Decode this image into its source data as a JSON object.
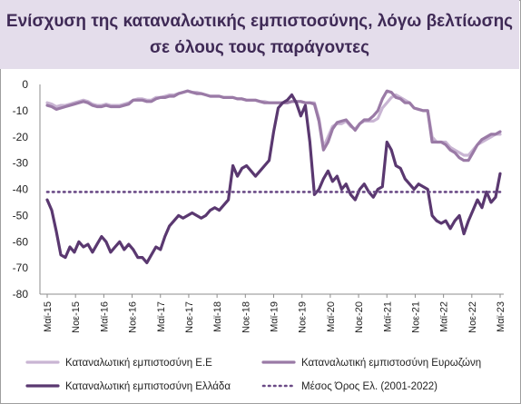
{
  "title_line1": "Ενίσχυση της καταναλωτικής εμπιστοσύνης, λόγω βελτίωσης",
  "title_line2": "σε όλους τους παράγοντες",
  "colors": {
    "eu": "#c9b5d3",
    "eurozone": "#9a7aa6",
    "greece": "#5a3870",
    "mean": "#6a4a86",
    "title_band": "#e4ddeb",
    "title_text": "#3f2a56"
  },
  "chart_data": {
    "type": "line",
    "title": "Ενίσχυση της καταναλωτικής εμπιστοσύνης, λόγω βελτίωσης σε όλους τους παράγοντες",
    "xlabel": "",
    "ylabel": "",
    "ylim": [
      -80,
      0
    ],
    "yticks": [
      0,
      -10,
      -20,
      -30,
      -40,
      -50,
      -60,
      -70,
      -80
    ],
    "x_start": "Μαϊ-15",
    "x_end": "Μαϊ-23",
    "xticks": [
      "Μαϊ-15",
      "Νοε-15",
      "Μαϊ-16",
      "Νοε-16",
      "Μαϊ-17",
      "Νοε-17",
      "Μαϊ-18",
      "Νοε-18",
      "Μαϊ-19",
      "Νοε-19",
      "Μαϊ-20",
      "Νοε-20",
      "Μαϊ-21",
      "Νοε-21",
      "Μαϊ-22",
      "Νοε-22",
      "Μαϊ-23"
    ],
    "grid": false,
    "legend_position": "bottom",
    "series": [
      {
        "name": "Καταναλωτική εμπιστοσύνη Ε.Ε",
        "style": "solid-light",
        "values": [
          -7,
          -7.5,
          -8.5,
          -8,
          -8,
          -7.5,
          -7,
          -6.5,
          -6,
          -6.5,
          -7.5,
          -8,
          -8,
          -7.5,
          -8,
          -8,
          -8,
          -7.5,
          -7,
          -6,
          -5.5,
          -5.5,
          -6,
          -6,
          -5,
          -5,
          -4.5,
          -4,
          -4,
          -3.5,
          -3,
          -2.5,
          -3,
          -3,
          -3.5,
          -4,
          -4.5,
          -4.5,
          -4.5,
          -5,
          -5,
          -5,
          -5.5,
          -5.5,
          -6,
          -6,
          -6,
          -6.5,
          -6.5,
          -7,
          -7,
          -7,
          -7,
          -7,
          -6.5,
          -6.5,
          -6.5,
          -7,
          -7,
          -7,
          -13,
          -24,
          -20,
          -16,
          -15,
          -15,
          -14,
          -16,
          -17,
          -15,
          -14,
          -14,
          -14,
          -13,
          -9,
          -7,
          -5,
          -4,
          -5,
          -6,
          -7,
          -9,
          -9.5,
          -10,
          -10,
          -20,
          -22,
          -22,
          -22,
          -24,
          -25,
          -26,
          -27,
          -27,
          -25,
          -23,
          -22,
          -21,
          -20,
          -19,
          -19
        ]
      },
      {
        "name": "Καταναλωτική εμπιστοσύνη Ευρωζώνη",
        "style": "solid-medium",
        "values": [
          -8,
          -8.5,
          -9.5,
          -9,
          -8.5,
          -8,
          -7.5,
          -7,
          -6.5,
          -7,
          -8,
          -8.5,
          -8.5,
          -8,
          -8.5,
          -8.5,
          -8.5,
          -8,
          -7.5,
          -6,
          -6,
          -6,
          -6.5,
          -6.5,
          -5.5,
          -5,
          -5,
          -4.5,
          -4.5,
          -3.5,
          -3,
          -2.5,
          -3,
          -3.5,
          -3.5,
          -4,
          -4.5,
          -4.5,
          -4.5,
          -5,
          -5,
          -5,
          -5.5,
          -5.5,
          -6,
          -6,
          -6,
          -6.5,
          -7,
          -7,
          -7,
          -7,
          -7,
          -7,
          -6.5,
          -6.5,
          -6.5,
          -7,
          -7,
          -7.5,
          -14,
          -25,
          -22,
          -17,
          -14.5,
          -14,
          -13.5,
          -15.5,
          -17.5,
          -15,
          -13.5,
          -13.5,
          -12,
          -10,
          -5.5,
          -2.5,
          -3,
          -5,
          -5.5,
          -7,
          -7,
          -9,
          -9.5,
          -10,
          -10,
          -22,
          -22,
          -22,
          -23,
          -25,
          -26,
          -28,
          -29,
          -29,
          -26,
          -23,
          -21,
          -20,
          -19,
          -19,
          -18
        ]
      },
      {
        "name": "Καταναλωτική εμπιστοσύνη Ελλάδα",
        "style": "solid-dark",
        "values": [
          -44,
          -48,
          -56,
          -65,
          -66,
          -62,
          -64,
          -60,
          -62,
          -61,
          -64,
          -61,
          -58,
          -60,
          -64,
          -62,
          -60,
          -63,
          -61,
          -63,
          -66,
          -66,
          -68,
          -65,
          -62,
          -63,
          -58,
          -54,
          -52,
          -50,
          -51,
          -50,
          -49,
          -50,
          -51,
          -50,
          -48,
          -47,
          -48,
          -46,
          -44,
          -31,
          -35,
          -32,
          -31,
          -33,
          -35,
          -33,
          -31,
          -29,
          -18,
          -9,
          -7,
          -6,
          -4,
          -7,
          -12,
          -8,
          -22,
          -42,
          -40,
          -36,
          -33,
          -37,
          -35,
          -40,
          -38,
          -42,
          -44,
          -40,
          -38,
          -41,
          -43,
          -40,
          -39,
          -22,
          -25,
          -31,
          -32,
          -36,
          -38,
          -40,
          -38,
          -39,
          -40,
          -50,
          -52,
          -53,
          -52,
          -55,
          -52,
          -50,
          -57,
          -52,
          -48,
          -44,
          -47,
          -41,
          -45,
          -43,
          -34
        ]
      },
      {
        "name": "Μέσος Όρος Ελ. (2001-2022)",
        "style": "dotted",
        "values": [
          -41,
          -41
        ]
      }
    ]
  }
}
